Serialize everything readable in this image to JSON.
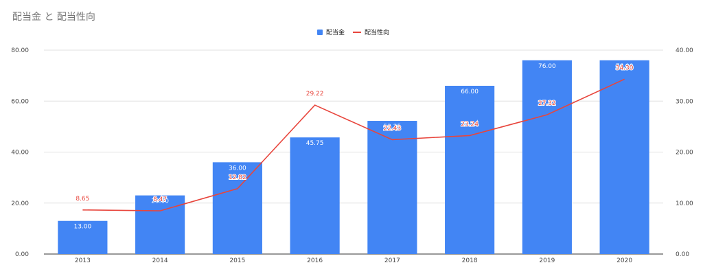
{
  "chart_data": {
    "type": "bar",
    "title": "配当金 と 配当性向",
    "categories": [
      "2013",
      "2014",
      "2015",
      "2016",
      "2017",
      "2018",
      "2019",
      "2020"
    ],
    "series": [
      {
        "name": "配当金",
        "type": "bar",
        "axis": "left",
        "color": "#4285f4",
        "values": [
          13.0,
          23.0,
          36.0,
          45.75,
          52.25,
          66.0,
          76.0,
          76.0
        ],
        "labels": [
          "13.00",
          "23.00",
          "36.00",
          "45.75",
          "52.25",
          "66.00",
          "76.00",
          "76.00"
        ]
      },
      {
        "name": "配当性向",
        "type": "line",
        "axis": "right",
        "color": "#e8453c",
        "values": [
          8.65,
          8.47,
          12.82,
          29.22,
          22.43,
          23.24,
          27.32,
          34.3
        ],
        "labels": [
          "8.65",
          "8.47",
          "12.82",
          "29.22",
          "22.43",
          "23.24",
          "27.32",
          "34.30"
        ]
      }
    ],
    "ylim_left": [
      0,
      80
    ],
    "ylim_right": [
      0,
      40
    ],
    "yticks_left": [
      "0.00",
      "20.00",
      "40.00",
      "60.00",
      "80.00"
    ],
    "yticks_right": [
      "0.00",
      "10.00",
      "20.00",
      "30.00",
      "40.00"
    ],
    "grid": true,
    "legend": "top-center"
  }
}
